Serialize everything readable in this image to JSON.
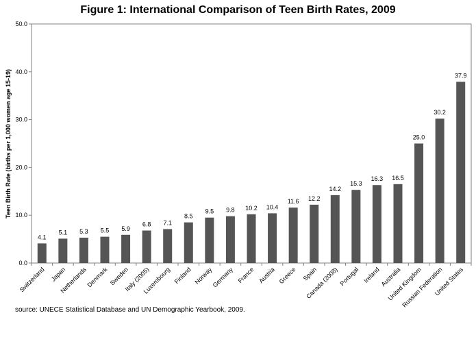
{
  "chart_data": {
    "type": "bar",
    "title": "Figure 1:  International Comparison of Teen Birth Rates, 2009",
    "xlabel": "",
    "ylabel": "Teen Birth Rate (births per 1,000 women age 15-19)",
    "ylim": [
      0,
      50
    ],
    "yticks": [
      "0.0",
      "10.0",
      "20.0",
      "30.0",
      "40.0",
      "50.0"
    ],
    "grid": false,
    "categories": [
      "Switzerland",
      "Japan",
      "Netherlands",
      "Denmark",
      "Sweden",
      "Italy (2005)",
      "Luxembourg",
      "Finland",
      "Norway",
      "Germany",
      "France",
      "Austria",
      "Greece",
      "Spain",
      "Canada (2008)",
      "Portugal",
      "Ireland",
      "Australia",
      "United Kingdom",
      "Russian Federation",
      "United States"
    ],
    "values": [
      4.1,
      5.1,
      5.3,
      5.5,
      5.9,
      6.8,
      7.1,
      8.5,
      9.5,
      9.8,
      10.2,
      10.4,
      11.6,
      12.2,
      14.2,
      15.3,
      16.3,
      16.5,
      25.0,
      30.2,
      37.9
    ],
    "data_labels": [
      "4.1",
      "5.1",
      "5.3",
      "5.5",
      "5.9",
      "6.8",
      "7.1",
      "8.5",
      "9.5",
      "9.8",
      "10.2",
      "10.4",
      "11.6",
      "12.2",
      "14.2",
      "15.3",
      "16.3",
      "16.5",
      "25.0",
      "30.2",
      "37.9"
    ],
    "bar_color": "#555555"
  },
  "source_note": "source:  UNECE Statistical Database and UN Demographic Yearbook, 2009."
}
